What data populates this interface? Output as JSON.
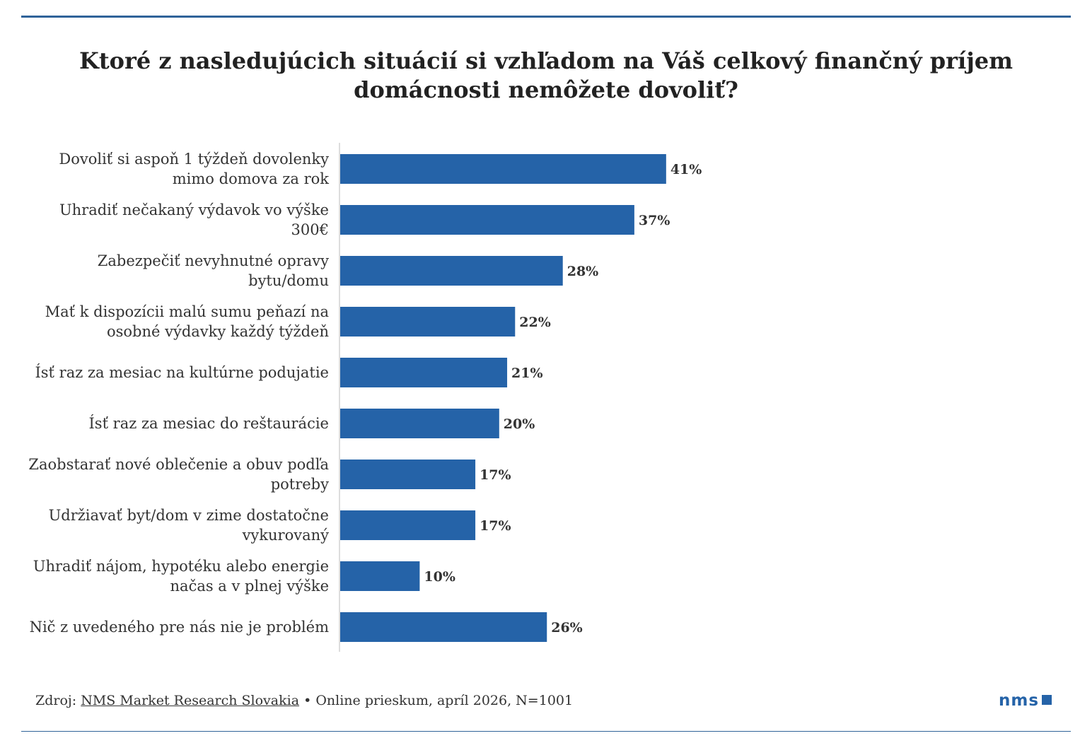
{
  "colors": {
    "bar": "#2563a8",
    "rule": "#2f6399",
    "axis": "#dddddd"
  },
  "chart_data": {
    "type": "bar",
    "orientation": "horizontal",
    "title": "Ktoré z nasledujúcich situácií si vzhľadom na Váš celkový finančný príjem domácnosti nemôžete dovoliť?",
    "categories": [
      "Dovoliť si aspoň 1 týždeň dovolenky mimo domova za rok",
      "Uhradiť nečakaný výdavok vo výške 300€",
      "Zabezpečiť nevyhnutné opravy bytu/domu",
      "Mať k dispozícii malú sumu peňazí na osobné výdavky každý týždeň",
      "Ísť raz za mesiac na kultúrne podujatie",
      "Ísť raz za mesiac do reštaurácie",
      "Zaobstarať nové oblečenie a obuv podľa potreby",
      "Udržiavať byt/dom v zime dostatočne vykurovaný",
      "Uhradiť nájom, hypotéku alebo energie načas a v plnej výške",
      "Nič z uvedeného pre nás nie je problém"
    ],
    "values": [
      41,
      37,
      28,
      22,
      21,
      20,
      17,
      17,
      10,
      26
    ],
    "data_labels": [
      "41%",
      "37%",
      "28%",
      "22%",
      "21%",
      "20%",
      "17%",
      "17%",
      "10%",
      "26%"
    ],
    "unit": "%",
    "xlim": [
      0,
      92
    ],
    "grid": false,
    "legend": "none"
  },
  "footer": {
    "source_prefix": "Zdroj: ",
    "source_link": "NMS Market Research Slovakia",
    "source_rest": " • Online prieskum, apríl 2026, N=1001",
    "logo": "nms"
  }
}
